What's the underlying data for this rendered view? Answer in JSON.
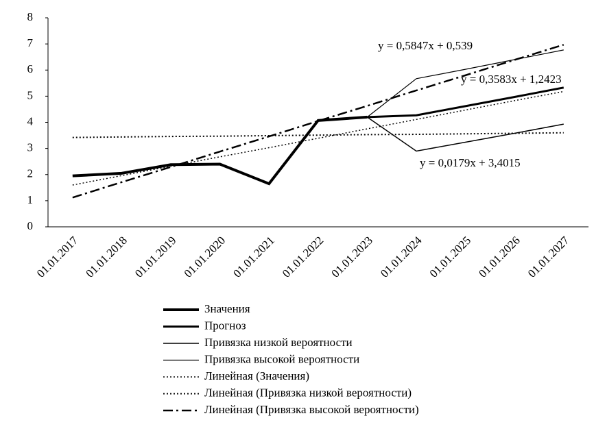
{
  "chart_data": {
    "type": "line",
    "categories": [
      "01.01.2017",
      "01.01.2018",
      "01.01.2019",
      "01.01.2020",
      "01.01.2021",
      "01.01.2022",
      "01.01.2023",
      "01.01.2024",
      "01.01.2025",
      "01.01.2026",
      "01.01.2027"
    ],
    "ylim": [
      0,
      8
    ],
    "yticks": [
      0,
      1,
      2,
      3,
      4,
      5,
      6,
      7,
      8
    ],
    "series": [
      {
        "name": "Значения",
        "color": "#000000",
        "line_width": 4,
        "dash": "solid",
        "values": [
          1.95,
          2.05,
          2.38,
          2.4,
          1.65,
          4.07,
          4.2,
          null,
          null,
          null,
          null
        ]
      },
      {
        "name": "Прогноз",
        "color": "#000000",
        "line_width": 3,
        "dash": "solid",
        "values": [
          null,
          null,
          null,
          null,
          null,
          null,
          4.2,
          4.27,
          4.62,
          4.97,
          5.33
        ]
      },
      {
        "name": "Привязка низкой вероятности",
        "color": "#000000",
        "line_width": 1.5,
        "dash": "solid",
        "values": [
          null,
          null,
          null,
          null,
          null,
          null,
          4.2,
          2.9,
          3.24,
          3.58,
          3.93
        ]
      },
      {
        "name": "Привязка высокой вероятности",
        "color": "#000000",
        "line_width": 1.2,
        "dash": "solid",
        "values": [
          null,
          null,
          null,
          null,
          null,
          null,
          4.2,
          5.67,
          6.03,
          6.4,
          6.77
        ]
      },
      {
        "name": "Линейная (Значения)",
        "color": "#000000",
        "line_width": 1.5,
        "dash": "dotted",
        "values": [
          1.6,
          1.96,
          2.32,
          2.68,
          3.03,
          3.39,
          3.75,
          4.11,
          4.47,
          4.83,
          5.18
        ]
      },
      {
        "name": "Линейная (Привязка низкой вероятности)",
        "color": "#000000",
        "line_width": 2,
        "dash": "dotted",
        "values": [
          3.42,
          3.44,
          3.46,
          3.47,
          3.49,
          3.51,
          3.53,
          3.54,
          3.56,
          3.58,
          3.6
        ]
      },
      {
        "name": "Линейная (Привязка высокой вероятности)",
        "color": "#000000",
        "line_width": 2.5,
        "dash": "dashdot",
        "values": [
          1.12,
          1.71,
          2.29,
          2.88,
          3.46,
          4.05,
          4.63,
          5.22,
          5.8,
          6.39,
          6.97
        ]
      }
    ],
    "annotations": [
      "y = 0,5847x + 0,539",
      "y = 0,3583x + 1,2423",
      "y = 0,0179x + 3,4015"
    ]
  }
}
